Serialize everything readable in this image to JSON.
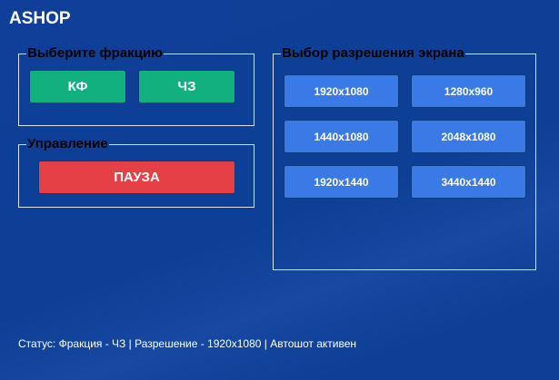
{
  "app": {
    "title": "ASHOP"
  },
  "faction": {
    "legend": "Выберите фракцию",
    "buttons": [
      "КФ",
      "ЧЗ"
    ]
  },
  "control": {
    "legend": "Управление",
    "pause_label": "ПАУЗА"
  },
  "resolution": {
    "legend": "Выбор разрешения экрана",
    "buttons": [
      "1920x1080",
      "1280x960",
      "1440x1080",
      "2048x1080",
      "1920x1440",
      "3440x1440"
    ]
  },
  "status": "Статус: Фракция - ЧЗ | Разрешение - 1920x1080 | Автошот активен",
  "colors": {
    "background": "#0e3f96",
    "faction_button": "#13b07f",
    "pause_button": "#e54045",
    "resolution_button": "#3a7ae6"
  }
}
